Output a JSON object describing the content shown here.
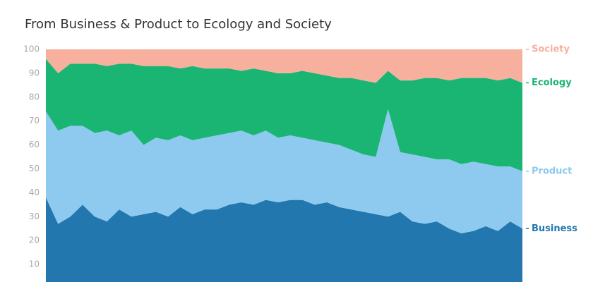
{
  "chart_data": {
    "type": "stacked-area",
    "title": "From Business & Product to Ecology and Society",
    "categories": [
      null,
      null,
      null,
      null,
      null,
      null,
      null,
      null,
      null,
      null,
      null,
      null,
      null,
      null,
      null,
      null,
      null,
      null,
      null,
      null,
      null,
      null,
      null,
      null,
      null,
      null,
      null,
      null,
      null,
      null,
      null,
      null,
      null,
      null,
      null,
      null,
      null,
      null,
      null,
      null
    ],
    "series": [
      {
        "name": "Business",
        "color": "#2277ae",
        "values": [
          38,
          27,
          30,
          35,
          30,
          28,
          33,
          30,
          31,
          32,
          30,
          34,
          31,
          33,
          33,
          35,
          36,
          35,
          37,
          36,
          37,
          37,
          35,
          36,
          34,
          33,
          32,
          31,
          30,
          32,
          28,
          27,
          28,
          25,
          23,
          24,
          26,
          24,
          28,
          25
        ]
      },
      {
        "name": "Product",
        "color": "#8ecaf0",
        "values": [
          36,
          39,
          38,
          33,
          35,
          38,
          31,
          36,
          29,
          31,
          32,
          30,
          31,
          30,
          31,
          30,
          30,
          29,
          29,
          27,
          27,
          26,
          27,
          25,
          26,
          25,
          24,
          24,
          45,
          25,
          28,
          28,
          26,
          29,
          29,
          29,
          26,
          27,
          23,
          24
        ]
      },
      {
        "name": "Ecology",
        "color": "#1bb573",
        "values": [
          22,
          24,
          26,
          26,
          29,
          27,
          30,
          28,
          33,
          30,
          31,
          28,
          31,
          29,
          28,
          27,
          25,
          28,
          25,
          27,
          26,
          28,
          28,
          28,
          28,
          30,
          31,
          31,
          16,
          30,
          31,
          33,
          34,
          33,
          36,
          35,
          36,
          36,
          37,
          37
        ]
      },
      {
        "name": "Society",
        "color": "#f7b09e",
        "values": [
          4,
          10,
          6,
          6,
          6,
          7,
          6,
          6,
          7,
          7,
          7,
          8,
          7,
          8,
          8,
          8,
          9,
          8,
          9,
          10,
          10,
          9,
          10,
          11,
          12,
          12,
          13,
          14,
          9,
          13,
          13,
          12,
          12,
          13,
          12,
          12,
          12,
          13,
          12,
          14
        ]
      }
    ],
    "ylim": [
      0,
      100
    ],
    "yticks": [
      10,
      20,
      30,
      40,
      50,
      60,
      70,
      80,
      90,
      100
    ],
    "grid": false
  }
}
